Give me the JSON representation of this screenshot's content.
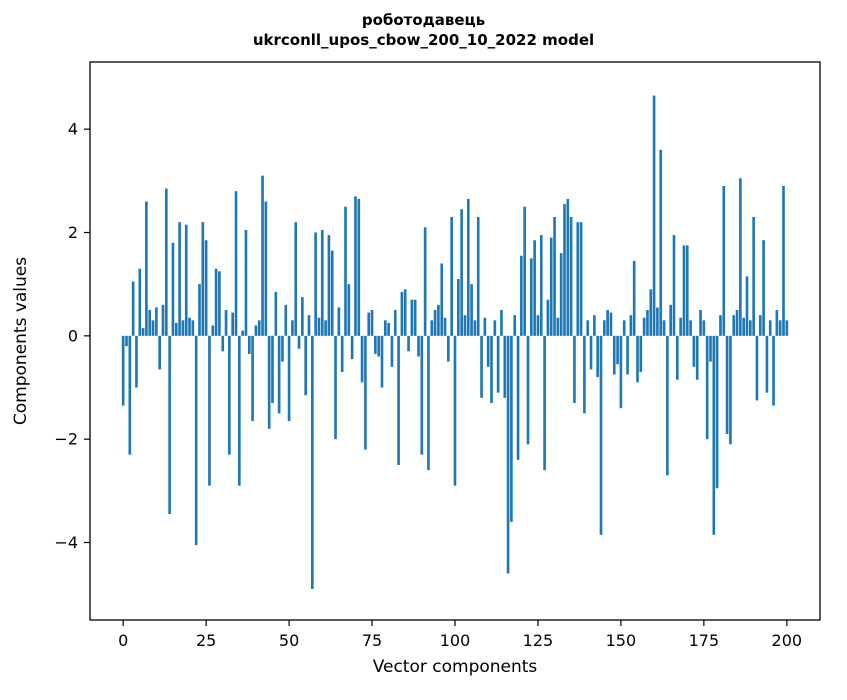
{
  "chart_data": {
    "type": "bar",
    "title": "роботодавець",
    "subtitle": "ukrconll_upos_cbow_200_10_2022 model",
    "xlabel": "Vector components",
    "ylabel": "Components values",
    "xlim": [
      -10,
      210
    ],
    "ylim": [
      -5.5,
      5.3
    ],
    "x_ticks": [
      0,
      25,
      50,
      75,
      100,
      125,
      150,
      175,
      200
    ],
    "y_ticks": [
      -4,
      -2,
      0,
      2,
      4
    ],
    "bar_color": "#1f77b4",
    "grid": false,
    "legend": "none",
    "values": [
      -1.35,
      -0.2,
      -2.3,
      1.05,
      -1.0,
      1.3,
      0.15,
      2.6,
      0.5,
      0.3,
      0.55,
      -0.65,
      0.6,
      2.85,
      -3.45,
      1.8,
      0.25,
      2.2,
      0.3,
      2.15,
      0.35,
      0.3,
      -4.05,
      1.0,
      2.2,
      1.85,
      -2.9,
      0.2,
      1.3,
      1.25,
      -0.3,
      0.5,
      -2.3,
      0.45,
      2.8,
      -2.9,
      0.1,
      2.05,
      -0.35,
      -1.65,
      0.2,
      0.3,
      3.1,
      2.6,
      -1.8,
      -1.3,
      0.85,
      -1.5,
      -0.5,
      0.6,
      -1.65,
      0.3,
      2.2,
      -0.25,
      0.75,
      -1.15,
      0.4,
      -4.9,
      2.0,
      0.35,
      2.05,
      0.3,
      1.95,
      1.65,
      -2.0,
      0.55,
      -0.7,
      2.5,
      1.0,
      -0.45,
      2.7,
      2.65,
      -0.9,
      -2.2,
      0.45,
      0.5,
      -0.35,
      -0.4,
      -1.0,
      0.3,
      0.25,
      -0.6,
      0.5,
      -2.5,
      0.85,
      0.9,
      -0.3,
      0.7,
      0.7,
      -0.4,
      -2.3,
      2.1,
      -2.6,
      0.3,
      0.5,
      0.6,
      1.4,
      0.35,
      -0.5,
      2.3,
      -2.9,
      1.1,
      2.45,
      0.4,
      2.65,
      1.0,
      0.3,
      2.3,
      -1.2,
      0.35,
      -0.6,
      -1.3,
      0.3,
      -1.1,
      0.5,
      -1.2,
      -4.6,
      -3.6,
      0.4,
      -2.4,
      1.55,
      2.5,
      -2.1,
      1.5,
      1.85,
      0.4,
      1.95,
      -2.6,
      0.7,
      1.9,
      2.3,
      0.35,
      1.6,
      2.55,
      2.65,
      2.3,
      -1.3,
      2.2,
      2.2,
      -1.5,
      0.3,
      -0.65,
      0.4,
      -0.8,
      -3.85,
      0.3,
      0.5,
      0.45,
      -0.75,
      -0.55,
      -1.4,
      0.3,
      -0.75,
      0.4,
      1.45,
      -0.9,
      -0.7,
      0.35,
      0.5,
      0.9,
      4.65,
      0.55,
      3.6,
      0.3,
      -2.7,
      0.6,
      1.95,
      -0.85,
      0.35,
      1.75,
      1.75,
      0.3,
      -0.6,
      -0.85,
      0.5,
      0.3,
      -2.0,
      -0.5,
      -3.85,
      -2.95,
      0.4,
      2.9,
      -1.9,
      -2.1,
      0.4,
      0.5,
      3.05,
      0.35,
      1.15,
      0.3,
      2.3,
      -1.25,
      0.4,
      1.85,
      -1.1,
      0.3,
      -1.35,
      0.5,
      0.3,
      2.9,
      0.3
    ]
  }
}
